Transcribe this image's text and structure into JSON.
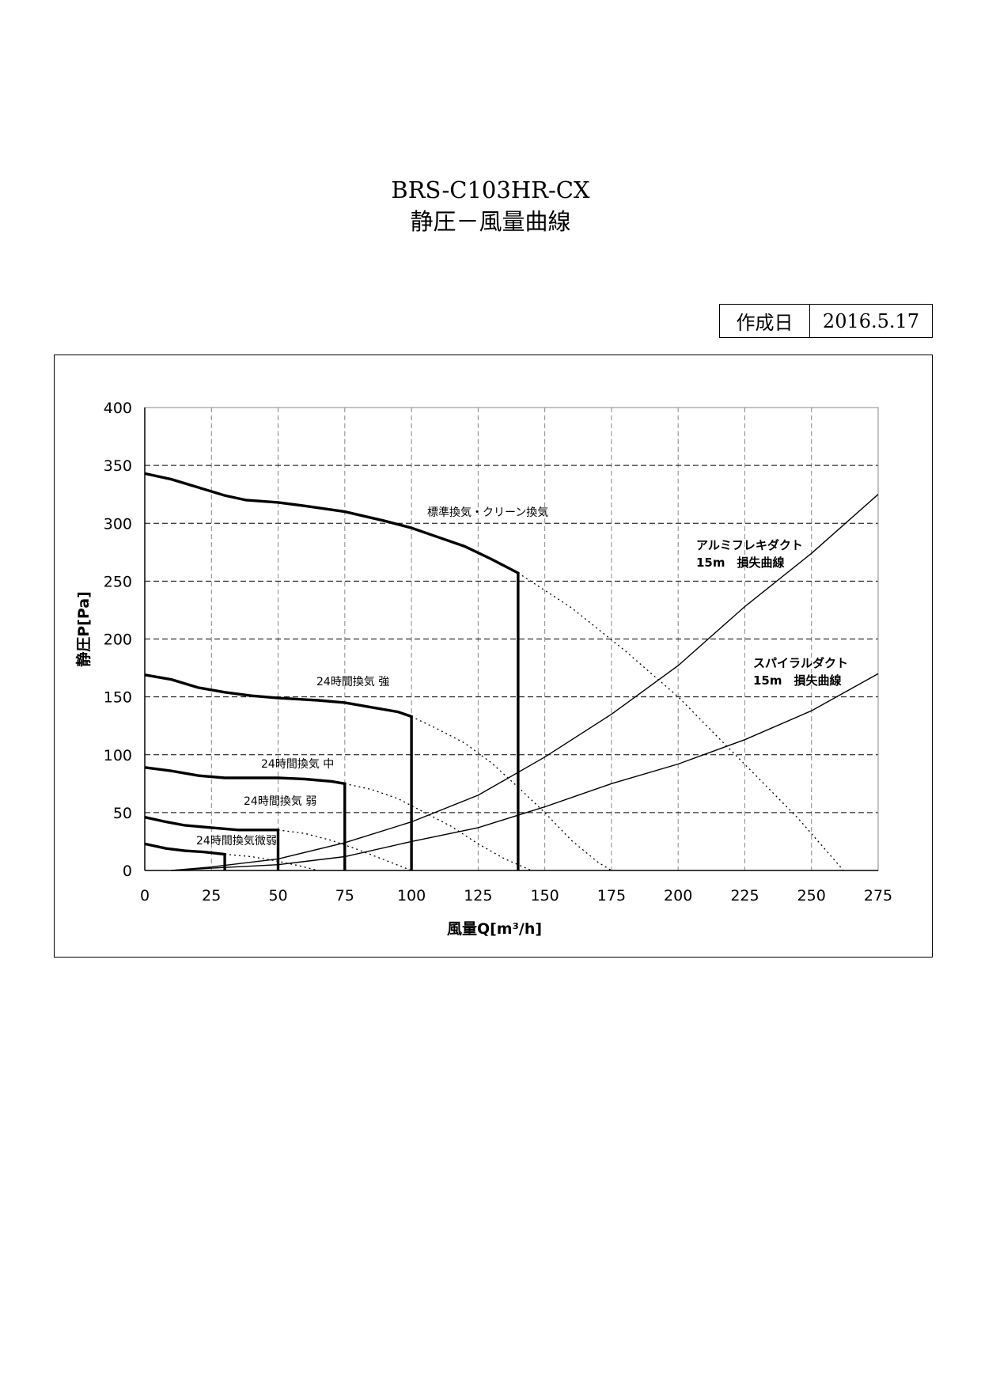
{
  "header": {
    "title_line1": "BRS-C103HR-CX",
    "title_line2": "静圧－風量曲線",
    "date_label": "作成日",
    "date_value": "2016.5.17"
  },
  "chart_data": {
    "type": "line",
    "title": "BRS-C103HR-CX 静圧－風量曲線",
    "xlabel": "風量Q[m³/h]",
    "ylabel": "静圧P[Pa]",
    "xlim": [
      0,
      275
    ],
    "ylim": [
      0,
      400
    ],
    "xticks": [
      "0",
      "25",
      "50",
      "75",
      "100",
      "125",
      "150",
      "175",
      "200",
      "225",
      "250",
      "275"
    ],
    "yticks": [
      "0",
      "50",
      "100",
      "150",
      "200",
      "250",
      "300",
      "350",
      "400"
    ],
    "grid": true,
    "fan_series": [
      {
        "name": "標準換気・クリーン換気",
        "points": [
          [
            0,
            343
          ],
          [
            10,
            338
          ],
          [
            20,
            331
          ],
          [
            30,
            324
          ],
          [
            38,
            320
          ],
          [
            50,
            318
          ],
          [
            60,
            315
          ],
          [
            75,
            310
          ],
          [
            90,
            302
          ],
          [
            100,
            296
          ],
          [
            110,
            288
          ],
          [
            120,
            280
          ],
          [
            130,
            269
          ],
          [
            140,
            257
          ],
          [
            140,
            0
          ]
        ],
        "extension": [
          [
            140,
            257
          ],
          [
            160,
            227
          ],
          [
            180,
            190
          ],
          [
            200,
            150
          ],
          [
            215,
            115
          ],
          [
            230,
            80
          ],
          [
            245,
            45
          ],
          [
            262,
            0
          ]
        ]
      },
      {
        "name": "24時間換気 強",
        "points": [
          [
            0,
            169
          ],
          [
            10,
            165
          ],
          [
            20,
            158
          ],
          [
            30,
            154
          ],
          [
            40,
            151
          ],
          [
            50,
            149
          ],
          [
            65,
            147
          ],
          [
            75,
            145
          ],
          [
            85,
            141
          ],
          [
            95,
            137
          ],
          [
            100,
            133
          ],
          [
            100,
            0
          ]
        ],
        "extension": [
          [
            100,
            133
          ],
          [
            110,
            122
          ],
          [
            120,
            110
          ],
          [
            130,
            93
          ],
          [
            140,
            72
          ],
          [
            150,
            50
          ],
          [
            160,
            26
          ],
          [
            170,
            7
          ],
          [
            175,
            0
          ]
        ]
      },
      {
        "name": "24時間換気 中",
        "points": [
          [
            0,
            89
          ],
          [
            10,
            86
          ],
          [
            20,
            82
          ],
          [
            30,
            80
          ],
          [
            40,
            80
          ],
          [
            50,
            80
          ],
          [
            60,
            79
          ],
          [
            70,
            77
          ],
          [
            75,
            75
          ],
          [
            75,
            0
          ]
        ],
        "extension": [
          [
            75,
            75
          ],
          [
            85,
            70
          ],
          [
            95,
            62
          ],
          [
            105,
            50
          ],
          [
            115,
            38
          ],
          [
            125,
            23
          ],
          [
            135,
            10
          ],
          [
            145,
            0
          ]
        ]
      },
      {
        "name": "24時間換気 弱",
        "points": [
          [
            0,
            46
          ],
          [
            8,
            42
          ],
          [
            15,
            39
          ],
          [
            25,
            37
          ],
          [
            35,
            35
          ],
          [
            50,
            35
          ],
          [
            50,
            0
          ]
        ],
        "extension": [
          [
            50,
            35
          ],
          [
            60,
            32
          ],
          [
            70,
            26
          ],
          [
            80,
            18
          ],
          [
            90,
            9
          ],
          [
            100,
            0
          ]
        ]
      },
      {
        "name": "24時間換気微弱",
        "points": [
          [
            0,
            23
          ],
          [
            8,
            19
          ],
          [
            15,
            17
          ],
          [
            22,
            16
          ],
          [
            30,
            14
          ],
          [
            30,
            0
          ]
        ],
        "extension": [
          [
            30,
            14
          ],
          [
            40,
            12
          ],
          [
            50,
            8
          ],
          [
            58,
            4
          ],
          [
            65,
            0
          ]
        ]
      }
    ],
    "duct_series": [
      {
        "name": "アルミフレキダクト 15m 損失曲線",
        "label_line1": "アルミフレキダクト",
        "label_line2": "15m　損失曲線",
        "points": [
          [
            10,
            0
          ],
          [
            25,
            3
          ],
          [
            50,
            10
          ],
          [
            75,
            24
          ],
          [
            100,
            42
          ],
          [
            125,
            65
          ],
          [
            150,
            98
          ],
          [
            175,
            135
          ],
          [
            200,
            177
          ],
          [
            225,
            228
          ],
          [
            250,
            274
          ],
          [
            275,
            325
          ]
        ]
      },
      {
        "name": "スパイラルダクト 15m 損失曲線",
        "label_line1": "スパイラルダクト",
        "label_line2": "15m　損失曲線",
        "points": [
          [
            10,
            0
          ],
          [
            25,
            2
          ],
          [
            50,
            5
          ],
          [
            75,
            12
          ],
          [
            100,
            25
          ],
          [
            125,
            37
          ],
          [
            150,
            55
          ],
          [
            175,
            75
          ],
          [
            200,
            92
          ],
          [
            225,
            113
          ],
          [
            250,
            138
          ],
          [
            275,
            170
          ]
        ]
      }
    ]
  }
}
